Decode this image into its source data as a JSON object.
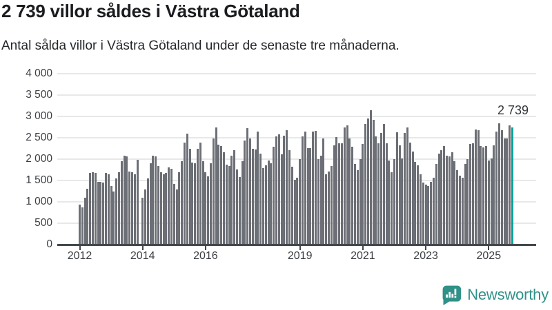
{
  "chart_data": {
    "type": "bar",
    "title": "2 739 villor såldes i Västra Götaland",
    "subtitle": "Antal sålda villor i Västra Götaland under de senaste tre månaderna.",
    "ylim": [
      0,
      4000
    ],
    "grid": true,
    "y_ticks": [
      0,
      500,
      1000,
      1500,
      2000,
      2500,
      3000,
      3500,
      4000
    ],
    "y_tick_labels": [
      "0",
      "500",
      "1 000",
      "1 500",
      "2 000",
      "2 500",
      "3 000",
      "3 500",
      "4 000"
    ],
    "x_start_year": 2012,
    "x_months_per_bar": 1,
    "x_tick_years": [
      2012,
      2014,
      2016,
      2019,
      2021,
      2023,
      2025
    ],
    "x_tick_labels": [
      "2012",
      "2014",
      "2016",
      "2019",
      "2021",
      "2023",
      "2025"
    ],
    "values": [
      940,
      865,
      1090,
      1305,
      1675,
      1700,
      1675,
      1475,
      1470,
      1450,
      1675,
      1650,
      1375,
      1235,
      1555,
      1690,
      1945,
      2080,
      2060,
      1715,
      1700,
      1650,
      1980,
      null,
      1100,
      1285,
      1550,
      1900,
      2085,
      2070,
      1845,
      1700,
      1650,
      1685,
      1810,
      1780,
      1420,
      1285,
      1695,
      1955,
      2380,
      2595,
      2250,
      1925,
      1910,
      2250,
      2380,
      1955,
      1695,
      1600,
      1900,
      2490,
      2745,
      2340,
      2310,
      2160,
      1875,
      1835,
      2085,
      2210,
      1765,
      1580,
      1955,
      2435,
      2730,
      2490,
      2250,
      2230,
      2650,
      2135,
      1790,
      1860,
      1965,
      1905,
      2295,
      2535,
      2580,
      2105,
      2550,
      2670,
      2205,
      1830,
      1520,
      1570,
      2000,
      2525,
      2650,
      2255,
      2265,
      2640,
      2665,
      2000,
      2080,
      2480,
      1650,
      1705,
      1840,
      2330,
      2510,
      2375,
      2375,
      2750,
      2790,
      2480,
      2295,
      1895,
      1735,
      2000,
      2350,
      2830,
      2950,
      3145,
      2920,
      2535,
      2375,
      2615,
      2815,
      2375,
      1970,
      1690,
      2000,
      2625,
      2320,
      2015,
      2615,
      2750,
      2380,
      2180,
      1930,
      1850,
      1640,
      1455,
      1410,
      1370,
      1460,
      1570,
      1895,
      2135,
      2215,
      2310,
      2080,
      2065,
      2160,
      1955,
      1735,
      1610,
      1570,
      1895,
      2000,
      2350,
      2375,
      2695,
      2670,
      2310,
      2280,
      2310,
      1975,
      2010,
      2320,
      2640,
      2845,
      2670,
      2490,
      2480,
      2790,
      2739
    ],
    "highlight_index": 165,
    "highlight_value": 2739,
    "highlight_label": "2 739",
    "colors": {
      "bar": "#6c6f75",
      "highlight": "#00a29a",
      "gridline": "#e7e8e9",
      "axis": "#42464d"
    }
  },
  "footer": {
    "brand": "Newsworthy",
    "logo_icon": "newsworthy-speech-bubble-bar-chart-icon",
    "brand_color": "#2f9188"
  }
}
